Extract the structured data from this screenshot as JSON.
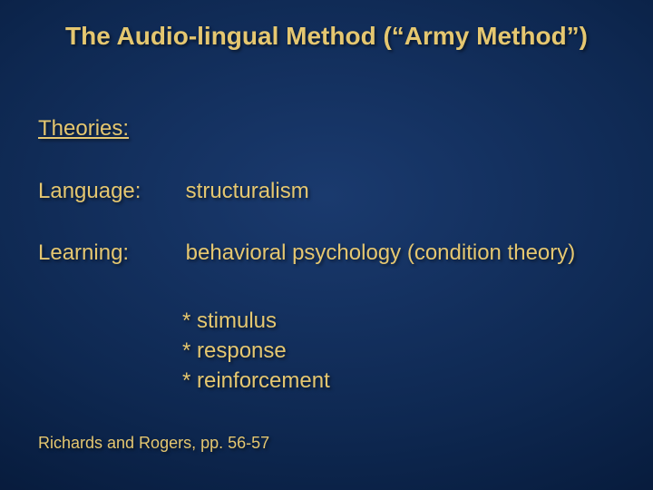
{
  "colors": {
    "text": "#e5c770",
    "bg_center": "#1a3a6e",
    "bg_edge": "#04122d"
  },
  "typography": {
    "title_fontsize": 28,
    "body_fontsize": 24,
    "citation_fontsize": 18,
    "font_family": "Arial",
    "title_weight": "bold"
  },
  "title": "The Audio-lingual Method (“Army Method”)",
  "section_heading": "Theories:",
  "rows": {
    "language": {
      "label": "Language:",
      "value": "structuralism"
    },
    "learning": {
      "label": "Learning:",
      "value": "behavioral psychology (condition theory)"
    }
  },
  "bullets": [
    "* stimulus",
    "* response",
    "* reinforcement"
  ],
  "citation": "Richards and Rogers, pp. 56-57"
}
